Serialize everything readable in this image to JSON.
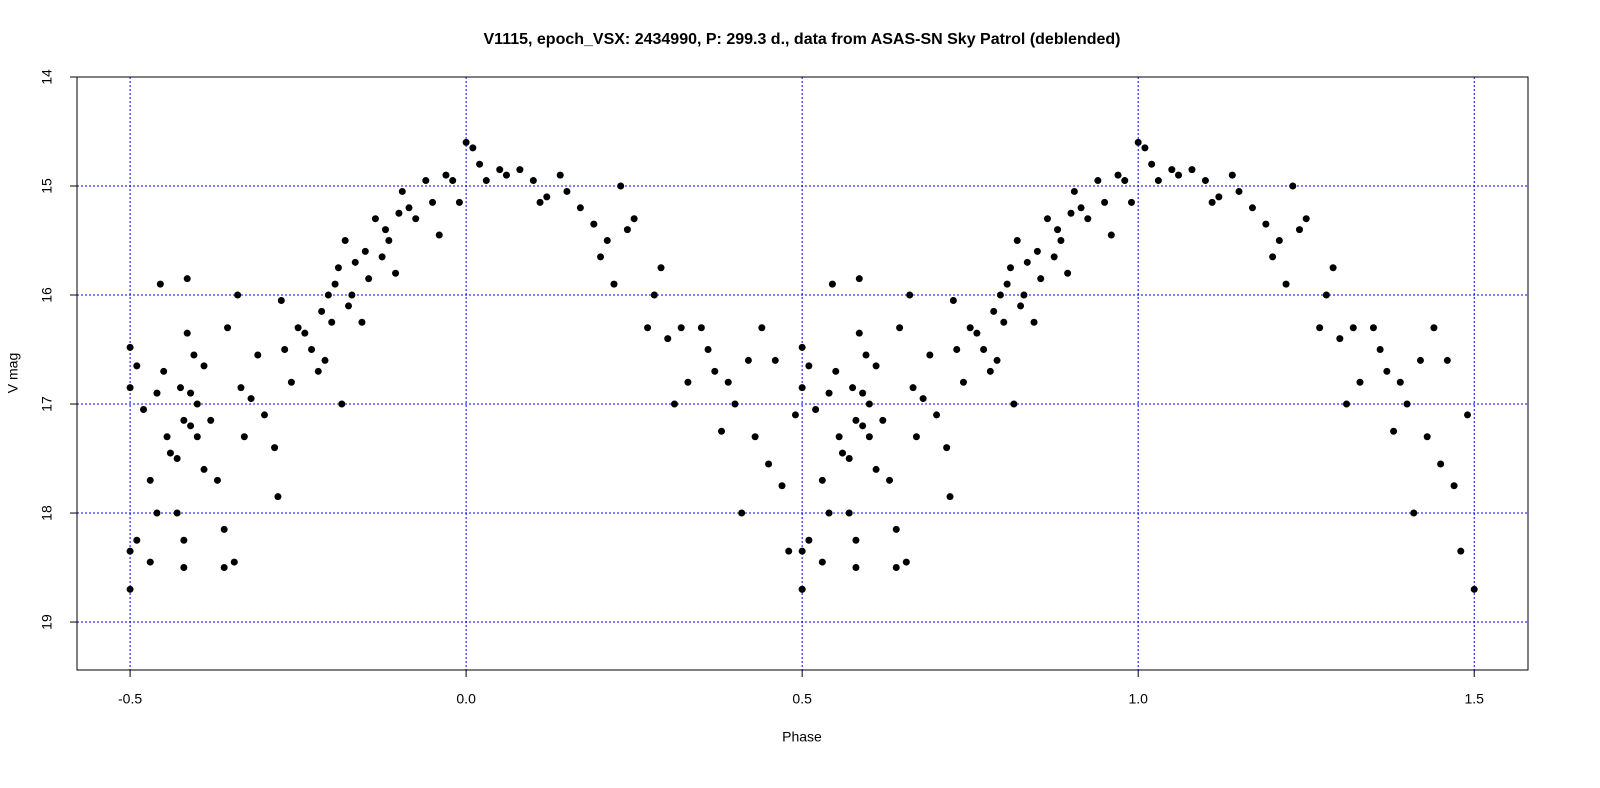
{
  "chart_data": {
    "type": "scatter",
    "title": "V1115, epoch_VSX: 2434990, P: 299.3 d., data from ASAS-SN Sky Patrol (deblended)",
    "x_label": "Phase",
    "y_label": "V mag",
    "color": "#000000",
    "grid": true,
    "grid_color": "#0000ff",
    "y_reversed": true,
    "xlim": [
      -0.579,
      1.58
    ],
    "ylim": [
      14,
      19.44
    ],
    "xticks": [
      -0.5,
      {
        "value": 0,
        "label": "0.0"
      },
      0.5,
      {
        "value": 1,
        "label": "1.0"
      },
      1.5
    ],
    "yticks": [
      14,
      15,
      16,
      17,
      18,
      19
    ],
    "x": [
      -0.5,
      -0.5,
      -0.5,
      -0.5,
      -0.49,
      -0.49,
      -0.48,
      -0.47,
      -0.47,
      -0.46,
      -0.46,
      -0.455,
      -0.45,
      -0.445,
      -0.44,
      -0.43,
      -0.43,
      -0.425,
      -0.42,
      -0.42,
      -0.42,
      -0.415,
      -0.415,
      -0.41,
      -0.41,
      -0.405,
      -0.4,
      -0.4,
      -0.39,
      -0.39,
      -0.38,
      -0.37,
      -0.36,
      -0.36,
      -0.355,
      -0.345,
      -0.34,
      -0.335,
      -0.33,
      -0.32,
      -0.31,
      -0.3,
      -0.285,
      -0.28,
      -0.275,
      -0.27,
      -0.26,
      -0.25,
      -0.24,
      -0.23,
      -0.22,
      -0.215,
      -0.21,
      -0.205,
      -0.2,
      -0.195,
      -0.19,
      -0.185,
      -0.18,
      -0.175,
      -0.17,
      -0.165,
      -0.155,
      -0.15,
      -0.145,
      -0.135,
      -0.125,
      -0.12,
      -0.115,
      -0.105,
      -0.1,
      -0.095,
      -0.085,
      -0.075,
      -0.06,
      -0.05,
      -0.04,
      -0.03,
      -0.02,
      -0.01,
      0.0,
      0.01,
      0.02,
      0.03,
      0.05,
      0.06,
      0.08,
      0.1,
      0.11,
      0.12,
      0.14,
      0.15,
      0.17,
      0.19,
      0.2,
      0.21,
      0.22,
      0.23,
      0.24,
      0.25,
      0.27,
      0.28,
      0.29,
      0.3,
      0.31,
      0.32,
      0.33,
      0.35,
      0.36,
      0.37,
      0.38,
      0.39,
      0.4,
      0.41,
      0.42,
      0.43,
      0.44,
      0.45,
      0.46,
      0.47,
      0.48,
      0.49,
      0.5,
      0.5,
      0.5,
      0.5,
      0.5,
      0.51,
      0.51,
      0.52,
      0.53,
      0.53,
      0.54,
      0.54,
      0.545,
      0.55,
      0.555,
      0.56,
      0.57,
      0.57,
      0.575,
      0.58,
      0.58,
      0.58,
      0.585,
      0.585,
      0.59,
      0.59,
      0.595,
      0.6,
      0.6,
      0.61,
      0.61,
      0.62,
      0.63,
      0.64,
      0.64,
      0.645,
      0.655,
      0.66,
      0.665,
      0.67,
      0.68,
      0.69,
      0.7,
      0.715,
      0.72,
      0.725,
      0.73,
      0.74,
      0.75,
      0.76,
      0.77,
      0.78,
      0.785,
      0.79,
      0.795,
      0.8,
      0.805,
      0.81,
      0.815,
      0.82,
      0.825,
      0.83,
      0.835,
      0.845,
      0.85,
      0.855,
      0.865,
      0.875,
      0.88,
      0.885,
      0.895,
      0.9,
      0.905,
      0.915,
      0.925,
      0.94,
      0.95,
      0.96,
      0.97,
      0.98,
      0.99,
      1.0,
      1.01,
      1.02,
      1.03,
      1.05,
      1.06,
      1.08,
      1.1,
      1.11,
      1.12,
      1.14,
      1.15,
      1.17,
      1.19,
      1.2,
      1.21,
      1.22,
      1.23,
      1.24,
      1.25,
      1.27,
      1.28,
      1.29,
      1.3,
      1.31,
      1.32,
      1.33,
      1.35,
      1.36,
      1.37,
      1.38,
      1.39,
      1.4,
      1.41,
      1.42,
      1.43,
      1.44,
      1.45,
      1.46,
      1.47,
      1.48,
      1.49,
      1.5
    ],
    "values": [
      16.48,
      16.85,
      18.35,
      18.7,
      16.65,
      18.25,
      17.05,
      17.7,
      18.45,
      16.9,
      18.0,
      15.9,
      16.7,
      17.3,
      17.45,
      17.5,
      18.0,
      16.85,
      17.15,
      18.25,
      18.5,
      15.85,
      16.35,
      16.9,
      17.2,
      16.55,
      17.0,
      17.3,
      16.65,
      17.6,
      17.15,
      17.7,
      18.15,
      18.5,
      16.3,
      18.45,
      16.0,
      16.85,
      17.3,
      16.95,
      16.55,
      17.1,
      17.4,
      17.85,
      16.05,
      16.5,
      16.8,
      16.3,
      16.35,
      16.5,
      16.7,
      16.15,
      16.6,
      16.0,
      16.25,
      15.9,
      15.75,
      17.0,
      15.5,
      16.1,
      16.0,
      15.7,
      16.25,
      15.6,
      15.85,
      15.3,
      15.65,
      15.4,
      15.5,
      15.8,
      15.25,
      15.05,
      15.2,
      15.3,
      14.95,
      15.15,
      15.45,
      14.9,
      14.95,
      15.15,
      14.6,
      14.65,
      14.8,
      14.95,
      14.85,
      14.9,
      14.85,
      14.95,
      15.15,
      15.1,
      14.9,
      15.05,
      15.2,
      15.35,
      15.65,
      15.5,
      15.9,
      15.0,
      15.4,
      15.3,
      16.3,
      16.0,
      15.75,
      16.4,
      17.0,
      16.3,
      16.8,
      16.3,
      16.5,
      16.7,
      17.25,
      16.8,
      17.0,
      18.0,
      16.6,
      17.3,
      16.3,
      17.55,
      16.6,
      17.75,
      18.35,
      17.1,
      18.7,
      16.48,
      16.85,
      18.35,
      18.7,
      16.65,
      18.25,
      17.05,
      17.7,
      18.45,
      16.9,
      18.0,
      15.9,
      16.7,
      17.3,
      17.45,
      17.5,
      18.0,
      16.85,
      17.15,
      18.25,
      18.5,
      15.85,
      16.35,
      16.9,
      17.2,
      16.55,
      17.0,
      17.3,
      16.65,
      17.6,
      17.15,
      17.7,
      18.15,
      18.5,
      16.3,
      18.45,
      16.0,
      16.85,
      17.3,
      16.95,
      16.55,
      17.1,
      17.4,
      17.85,
      16.05,
      16.5,
      16.8,
      16.3,
      16.35,
      16.5,
      16.7,
      16.15,
      16.6,
      16.0,
      16.25,
      15.9,
      15.75,
      17.0,
      15.5,
      16.1,
      16.0,
      15.7,
      16.25,
      15.6,
      15.85,
      15.3,
      15.65,
      15.4,
      15.5,
      15.8,
      15.25,
      15.05,
      15.2,
      15.3,
      14.95,
      15.15,
      15.45,
      14.9,
      14.95,
      15.15,
      14.6,
      14.65,
      14.8,
      14.95,
      14.85,
      14.9,
      14.85,
      14.95,
      15.15,
      15.1,
      14.9,
      15.05,
      15.2,
      15.35,
      15.65,
      15.5,
      15.9,
      15.0,
      15.4,
      15.3,
      16.3,
      16.0,
      15.75,
      16.4,
      17.0,
      16.3,
      16.8,
      16.3,
      16.5,
      16.7,
      17.25,
      16.8,
      17.0,
      18.0,
      16.6,
      17.3,
      16.3,
      17.55,
      16.6,
      17.75,
      18.35,
      17.1,
      18.7
    ]
  }
}
